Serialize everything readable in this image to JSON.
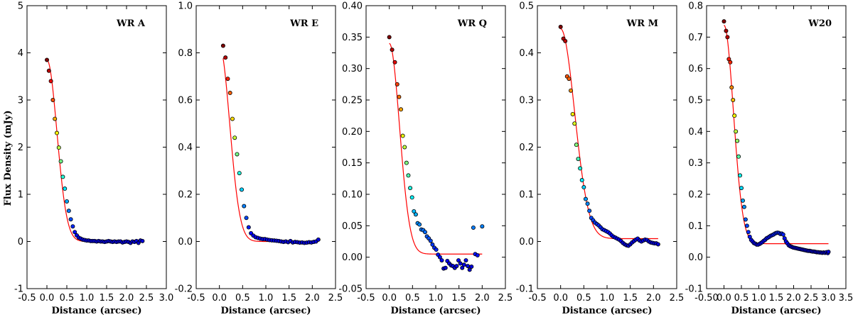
{
  "chart_data": [
    {
      "type": "scatter",
      "title": "WR A",
      "xlabel": "Distance (arcsec)",
      "ylabel": "Flux Density (mJy)",
      "xlim": [
        -0.5,
        3.0
      ],
      "ylim": [
        -1,
        5
      ],
      "xticks": [
        -0.5,
        0.0,
        0.5,
        1.0,
        1.5,
        2.0,
        2.5,
        3.0
      ],
      "xtick_labels": [
        "-0.5",
        "0.0",
        "0.5",
        "1.0",
        "1.5",
        "2.0",
        "2.5",
        "3.0"
      ],
      "yticks": [
        -1,
        0,
        1,
        2,
        3,
        4,
        5
      ],
      "ytick_labels": [
        "-1",
        "0",
        "1",
        "2",
        "3",
        "4",
        "5"
      ],
      "fit": {
        "amplitude": 3.85,
        "sigma": 0.25,
        "offset": 0.0,
        "color": "#ff0000"
      },
      "points": {
        "x": [
          0.0,
          0.05,
          0.1,
          0.15,
          0.2,
          0.25,
          0.3,
          0.35,
          0.4,
          0.45,
          0.5,
          0.55,
          0.6,
          0.65,
          0.7,
          0.75,
          0.8,
          0.85,
          0.9,
          0.95,
          1.0,
          1.05,
          1.1,
          1.15,
          1.2,
          1.25,
          1.3,
          1.35,
          1.4,
          1.45,
          1.5,
          1.55,
          1.6,
          1.65,
          1.7,
          1.75,
          1.8,
          1.85,
          1.9,
          1.95,
          2.0,
          2.05,
          2.1,
          2.15,
          2.2,
          2.25,
          2.3,
          2.35,
          2.4
        ],
        "y": [
          3.85,
          3.62,
          3.4,
          3.0,
          2.6,
          2.3,
          1.99,
          1.7,
          1.37,
          1.12,
          0.85,
          0.65,
          0.47,
          0.32,
          0.2,
          0.13,
          0.08,
          0.06,
          0.04,
          0.03,
          0.02,
          0.02,
          0.01,
          0.01,
          0.01,
          0.0,
          0.01,
          0.0,
          0.0,
          -0.01,
          0.0,
          0.01,
          0.0,
          -0.01,
          0.0,
          -0.01,
          0.0,
          0.0,
          -0.02,
          -0.01,
          0.0,
          -0.01,
          -0.03,
          0.0,
          -0.01,
          0.01,
          -0.03,
          0.02,
          0.01
        ]
      }
    },
    {
      "type": "scatter",
      "title": "WR E",
      "xlabel": "Distance (arcsec)",
      "ylabel": "",
      "xlim": [
        -0.5,
        2.5
      ],
      "ylim": [
        -0.2,
        1.0
      ],
      "xticks": [
        -0.5,
        0.0,
        0.5,
        1.0,
        1.5,
        2.0,
        2.5
      ],
      "xtick_labels": [
        "-0.5",
        "0.0",
        "0.5",
        "1.0",
        "1.5",
        "2.0",
        "2.5"
      ],
      "yticks": [
        -0.2,
        0.0,
        0.2,
        0.4,
        0.6,
        0.8,
        1.0
      ],
      "ytick_labels": [
        "-0.2",
        "0.0",
        "0.2",
        "0.4",
        "0.6",
        "0.8",
        "1.0"
      ],
      "fit": {
        "amplitude": 0.83,
        "sigma": 0.22,
        "offset": 0.0,
        "color": "#ff0000"
      },
      "points": {
        "x": [
          0.08,
          0.13,
          0.18,
          0.23,
          0.28,
          0.33,
          0.38,
          0.43,
          0.48,
          0.53,
          0.58,
          0.63,
          0.68,
          0.73,
          0.78,
          0.83,
          0.88,
          0.93,
          0.98,
          1.03,
          1.08,
          1.13,
          1.18,
          1.23,
          1.28,
          1.33,
          1.38,
          1.43,
          1.48,
          1.53,
          1.58,
          1.63,
          1.68,
          1.73,
          1.78,
          1.83,
          1.88,
          1.93,
          1.98,
          2.03,
          2.08,
          2.13
        ],
        "y": [
          0.83,
          0.78,
          0.69,
          0.63,
          0.52,
          0.44,
          0.37,
          0.29,
          0.22,
          0.15,
          0.1,
          0.06,
          0.035,
          0.025,
          0.018,
          0.015,
          0.012,
          0.01,
          0.01,
          0.008,
          0.006,
          0.005,
          0.004,
          0.003,
          0.002,
          0.0,
          -0.002,
          0.0,
          -0.003,
          0.002,
          -0.004,
          -0.002,
          -0.003,
          -0.005,
          -0.004,
          -0.006,
          -0.005,
          -0.003,
          -0.004,
          -0.002,
          0.0,
          0.008
        ]
      }
    },
    {
      "type": "scatter",
      "title": "WR Q",
      "xlabel": "Distance (arcsec)",
      "ylabel": "",
      "xlim": [
        -0.5,
        2.5
      ],
      "ylim": [
        -0.05,
        0.4
      ],
      "xticks": [
        -0.5,
        0.0,
        0.5,
        1.0,
        1.5,
        2.0,
        2.5
      ],
      "xtick_labels": [
        "-0.5",
        "0.0",
        "0.5",
        "1.0",
        "1.5",
        "2.0",
        "2.5"
      ],
      "yticks": [
        -0.05,
        0.0,
        0.05,
        0.1,
        0.15,
        0.2,
        0.25,
        0.3,
        0.35,
        0.4
      ],
      "ytick_labels": [
        "-0.05",
        "0.00",
        "0.05",
        "0.10",
        "0.15",
        "0.20",
        "0.25",
        "0.30",
        "0.35",
        "0.40"
      ],
      "fit": {
        "amplitude": 0.335,
        "sigma": 0.22,
        "offset": 0.005,
        "color": "#ff0000"
      },
      "points": {
        "x": [
          0.0,
          0.06,
          0.12,
          0.17,
          0.21,
          0.25,
          0.29,
          0.33,
          0.37,
          0.41,
          0.45,
          0.49,
          0.53,
          0.57,
          0.61,
          0.65,
          0.69,
          0.73,
          0.77,
          0.81,
          0.85,
          0.89,
          0.93,
          0.97,
          1.01,
          1.05,
          1.09,
          1.13,
          1.17,
          1.21,
          1.25,
          1.29,
          1.33,
          1.37,
          1.41,
          1.45,
          1.49,
          1.53,
          1.57,
          1.61,
          1.65,
          1.69,
          1.73,
          1.77,
          1.81,
          1.85,
          1.9,
          2.0
        ],
        "y": [
          0.35,
          0.33,
          0.31,
          0.275,
          0.255,
          0.235,
          0.193,
          0.175,
          0.15,
          0.13,
          0.11,
          0.095,
          0.073,
          0.068,
          0.054,
          0.052,
          0.044,
          0.043,
          0.04,
          0.033,
          0.03,
          0.026,
          0.02,
          0.015,
          0.012,
          0.004,
          0.0,
          -0.005,
          -0.018,
          -0.017,
          -0.006,
          -0.01,
          -0.013,
          -0.014,
          -0.017,
          -0.014,
          -0.005,
          -0.01,
          -0.017,
          -0.012,
          -0.005,
          -0.014,
          -0.02,
          -0.015,
          0.047,
          0.005,
          0.003,
          0.049
        ]
      }
    },
    {
      "type": "scatter",
      "title": "WR M",
      "xlabel": "Distance (arcsec)",
      "ylabel": "",
      "xlim": [
        -0.5,
        2.5
      ],
      "ylim": [
        -0.1,
        0.5
      ],
      "xticks": [
        -0.5,
        0.0,
        0.5,
        1.0,
        1.5,
        2.0,
        2.5
      ],
      "xtick_labels": [
        "-0.5",
        "0.0",
        "0.5",
        "1.0",
        "1.5",
        "2.0",
        "2.5"
      ],
      "yticks": [
        -0.1,
        0.0,
        0.1,
        0.2,
        0.3,
        0.4,
        0.5
      ],
      "ytick_labels": [
        "-0.1",
        "0.0",
        "0.1",
        "0.2",
        "0.3",
        "0.4",
        "0.5"
      ],
      "fit": {
        "amplitude": 0.445,
        "sigma": 0.3,
        "offset": 0.006,
        "color": "#ff0000"
      },
      "points": {
        "x": [
          0.0,
          0.06,
          0.1,
          0.14,
          0.18,
          0.22,
          0.26,
          0.3,
          0.34,
          0.38,
          0.42,
          0.46,
          0.5,
          0.54,
          0.58,
          0.62,
          0.66,
          0.7,
          0.74,
          0.78,
          0.82,
          0.86,
          0.9,
          0.94,
          0.98,
          1.02,
          1.06,
          1.1,
          1.14,
          1.18,
          1.22,
          1.26,
          1.3,
          1.34,
          1.38,
          1.42,
          1.46,
          1.5,
          1.54,
          1.58,
          1.62,
          1.66,
          1.7,
          1.74,
          1.78,
          1.82,
          1.86,
          1.9,
          1.94,
          1.98,
          2.02,
          2.06,
          2.1
        ],
        "y": [
          0.455,
          0.43,
          0.425,
          0.35,
          0.345,
          0.32,
          0.27,
          0.25,
          0.205,
          0.175,
          0.155,
          0.13,
          0.115,
          0.09,
          0.08,
          0.065,
          0.05,
          0.045,
          0.04,
          0.037,
          0.034,
          0.03,
          0.026,
          0.024,
          0.022,
          0.02,
          0.017,
          0.013,
          0.01,
          0.008,
          0.006,
          0.004,
          0.001,
          -0.003,
          -0.006,
          -0.008,
          -0.009,
          -0.006,
          -0.002,
          0.001,
          0.004,
          0.006,
          0.002,
          0.0,
          0.002,
          0.004,
          0.003,
          0.0,
          -0.002,
          -0.003,
          -0.004,
          -0.004,
          -0.006
        ]
      }
    },
    {
      "type": "scatter",
      "title": "W20",
      "xlabel": "Distance (arcsec)",
      "ylabel": "",
      "xlim": [
        -0.5,
        3.5
      ],
      "ylim": [
        -0.1,
        0.8
      ],
      "xticks": [
        -0.5,
        0.0,
        0.5,
        1.0,
        1.5,
        2.0,
        2.5,
        3.0,
        3.5
      ],
      "xtick_labels": [
        "-0.50",
        "0.0",
        "0.5",
        "1.0",
        "1.5",
        "2.0",
        "2.5",
        "3.0",
        "3.5"
      ],
      "yticks": [
        -0.1,
        0.0,
        0.1,
        0.2,
        0.3,
        0.4,
        0.5,
        0.6,
        0.7,
        0.8
      ],
      "ytick_labels": [
        "-0.1",
        "0.0",
        "0.1",
        "0.2",
        "0.3",
        "0.4",
        "0.5",
        "0.6",
        "0.7",
        "0.8"
      ],
      "fit": {
        "amplitude": 0.695,
        "sigma": 0.27,
        "offset": 0.043,
        "color": "#ff0000"
      },
      "points": {
        "x": [
          0.0,
          0.06,
          0.1,
          0.14,
          0.18,
          0.22,
          0.26,
          0.3,
          0.34,
          0.38,
          0.42,
          0.46,
          0.5,
          0.54,
          0.58,
          0.62,
          0.66,
          0.7,
          0.74,
          0.78,
          0.82,
          0.86,
          0.9,
          0.94,
          0.98,
          1.02,
          1.06,
          1.1,
          1.14,
          1.18,
          1.22,
          1.26,
          1.3,
          1.34,
          1.38,
          1.42,
          1.46,
          1.5,
          1.54,
          1.58,
          1.62,
          1.66,
          1.7,
          1.74,
          1.78,
          1.82,
          1.86,
          1.9,
          1.94,
          1.98,
          2.02,
          2.06,
          2.1,
          2.14,
          2.18,
          2.22,
          2.26,
          2.3,
          2.34,
          2.38,
          2.42,
          2.46,
          2.5,
          2.54,
          2.58,
          2.62,
          2.66,
          2.7,
          2.74,
          2.78,
          2.82,
          2.86,
          2.9,
          2.94,
          2.98,
          3.0
        ],
        "y": [
          0.75,
          0.72,
          0.7,
          0.63,
          0.62,
          0.54,
          0.5,
          0.45,
          0.4,
          0.37,
          0.32,
          0.26,
          0.22,
          0.18,
          0.16,
          0.12,
          0.1,
          0.08,
          0.065,
          0.055,
          0.05,
          0.045,
          0.043,
          0.04,
          0.04,
          0.042,
          0.045,
          0.048,
          0.052,
          0.055,
          0.06,
          0.062,
          0.065,
          0.068,
          0.07,
          0.072,
          0.075,
          0.077,
          0.078,
          0.077,
          0.074,
          0.075,
          0.072,
          0.06,
          0.05,
          0.044,
          0.038,
          0.035,
          0.033,
          0.031,
          0.03,
          0.029,
          0.028,
          0.027,
          0.026,
          0.025,
          0.024,
          0.023,
          0.022,
          0.021,
          0.02,
          0.02,
          0.019,
          0.018,
          0.018,
          0.017,
          0.016,
          0.016,
          0.015,
          0.015,
          0.014,
          0.015,
          0.014,
          0.016,
          0.013,
          0.017
        ]
      }
    }
  ]
}
